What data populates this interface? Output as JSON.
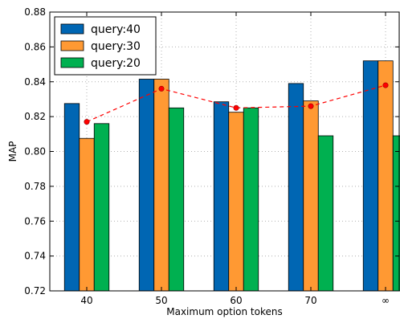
{
  "chart_data": {
    "type": "bar",
    "xlabel": "Maximum option tokens",
    "ylabel": "MAP",
    "categories": [
      "40",
      "50",
      "60",
      "70",
      "∞"
    ],
    "ylim": [
      0.72,
      0.88
    ],
    "yticks": [
      "0.72",
      "0.74",
      "0.76",
      "0.78",
      "0.80",
      "0.82",
      "0.84",
      "0.86",
      "0.88"
    ],
    "grid": true,
    "legend_position": "top-left",
    "series": [
      {
        "name": "query:40",
        "color": "#0066b3",
        "values": [
          0.8275,
          0.8415,
          0.8285,
          0.839,
          0.852
        ]
      },
      {
        "name": "query:30",
        "color": "#ff9933",
        "values": [
          0.8075,
          0.8415,
          0.8225,
          0.829,
          0.852
        ]
      },
      {
        "name": "query:20",
        "color": "#00b050",
        "values": [
          0.816,
          0.825,
          0.825,
          0.809,
          0.809
        ]
      }
    ],
    "average_line": {
      "color": "#ff0000",
      "style": "dashed",
      "values": [
        0.817,
        0.836,
        0.825,
        0.826,
        0.838
      ]
    }
  }
}
